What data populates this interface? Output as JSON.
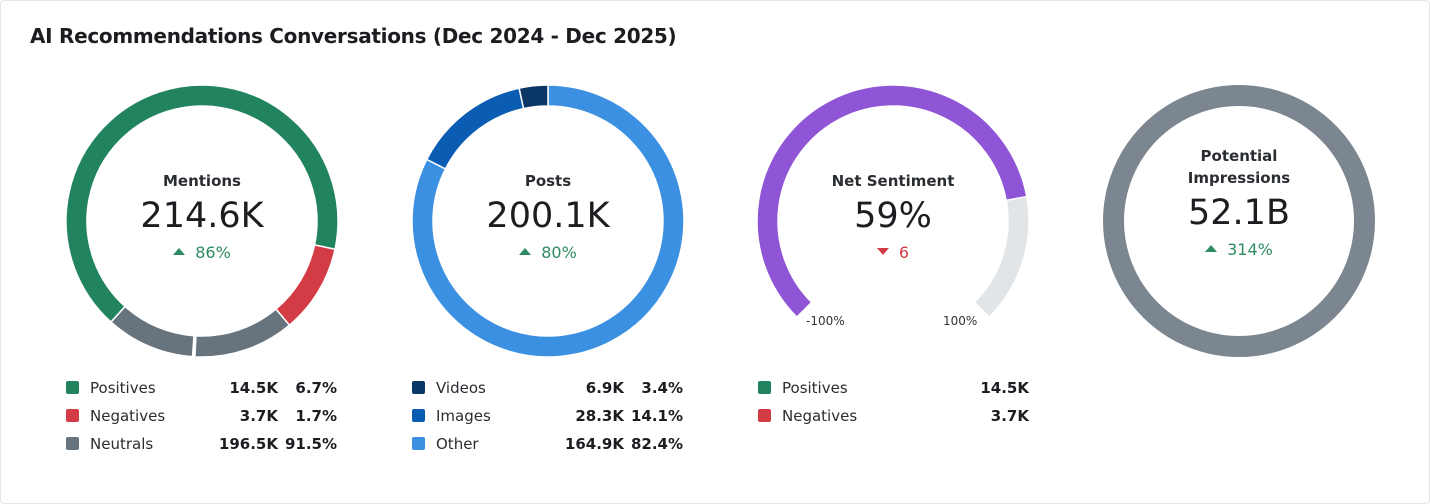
{
  "title": "AI Recommendations Conversations (Dec 2024 - Dec 2025)",
  "colors": {
    "positive": "#22845f",
    "negative": "#d33b45",
    "neutral": "#67737d",
    "videos": "#0b3767",
    "images": "#0b5db3",
    "other": "#3b90e2",
    "sentiment": "#8f55d6",
    "sentiment_track": "#e2e5e8",
    "impressions": "#7b8690",
    "up": "#2e8b62",
    "down": "#d33b45"
  },
  "mentions": {
    "label": "Mentions",
    "value": "214.6K",
    "delta": "86%",
    "delta_direction": "up",
    "legend": [
      {
        "name": "Positives",
        "value": "14.5K",
        "pct": "6.7%",
        "color": "#22845f"
      },
      {
        "name": "Negatives",
        "value": "3.7K",
        "pct": "1.7%",
        "color": "#d33b45"
      },
      {
        "name": "Neutrals",
        "value": "196.5K",
        "pct": "91.5%",
        "color": "#67737d"
      }
    ]
  },
  "posts": {
    "label": "Posts",
    "value": "200.1K",
    "delta": "80%",
    "delta_direction": "up",
    "legend": [
      {
        "name": "Videos",
        "value": "6.9K",
        "pct": "3.4%",
        "color": "#0b3767"
      },
      {
        "name": "Images",
        "value": "28.3K",
        "pct": "14.1%",
        "color": "#0b5db3"
      },
      {
        "name": "Other",
        "value": "164.9K",
        "pct": "82.4%",
        "color": "#3b90e2"
      }
    ]
  },
  "sentiment": {
    "label": "Net Sentiment",
    "value": "59%",
    "gauge_value": 59,
    "range": [
      -100,
      100
    ],
    "min_label": "-100%",
    "max_label": "100%",
    "delta": "6",
    "delta_direction": "down",
    "legend": [
      {
        "name": "Positives",
        "value": "14.5K",
        "color": "#22845f"
      },
      {
        "name": "Negatives",
        "value": "3.7K",
        "color": "#d33b45"
      }
    ]
  },
  "impressions": {
    "label": "Potential Impressions",
    "value": "52.1B",
    "delta": "314%",
    "delta_direction": "up"
  }
}
